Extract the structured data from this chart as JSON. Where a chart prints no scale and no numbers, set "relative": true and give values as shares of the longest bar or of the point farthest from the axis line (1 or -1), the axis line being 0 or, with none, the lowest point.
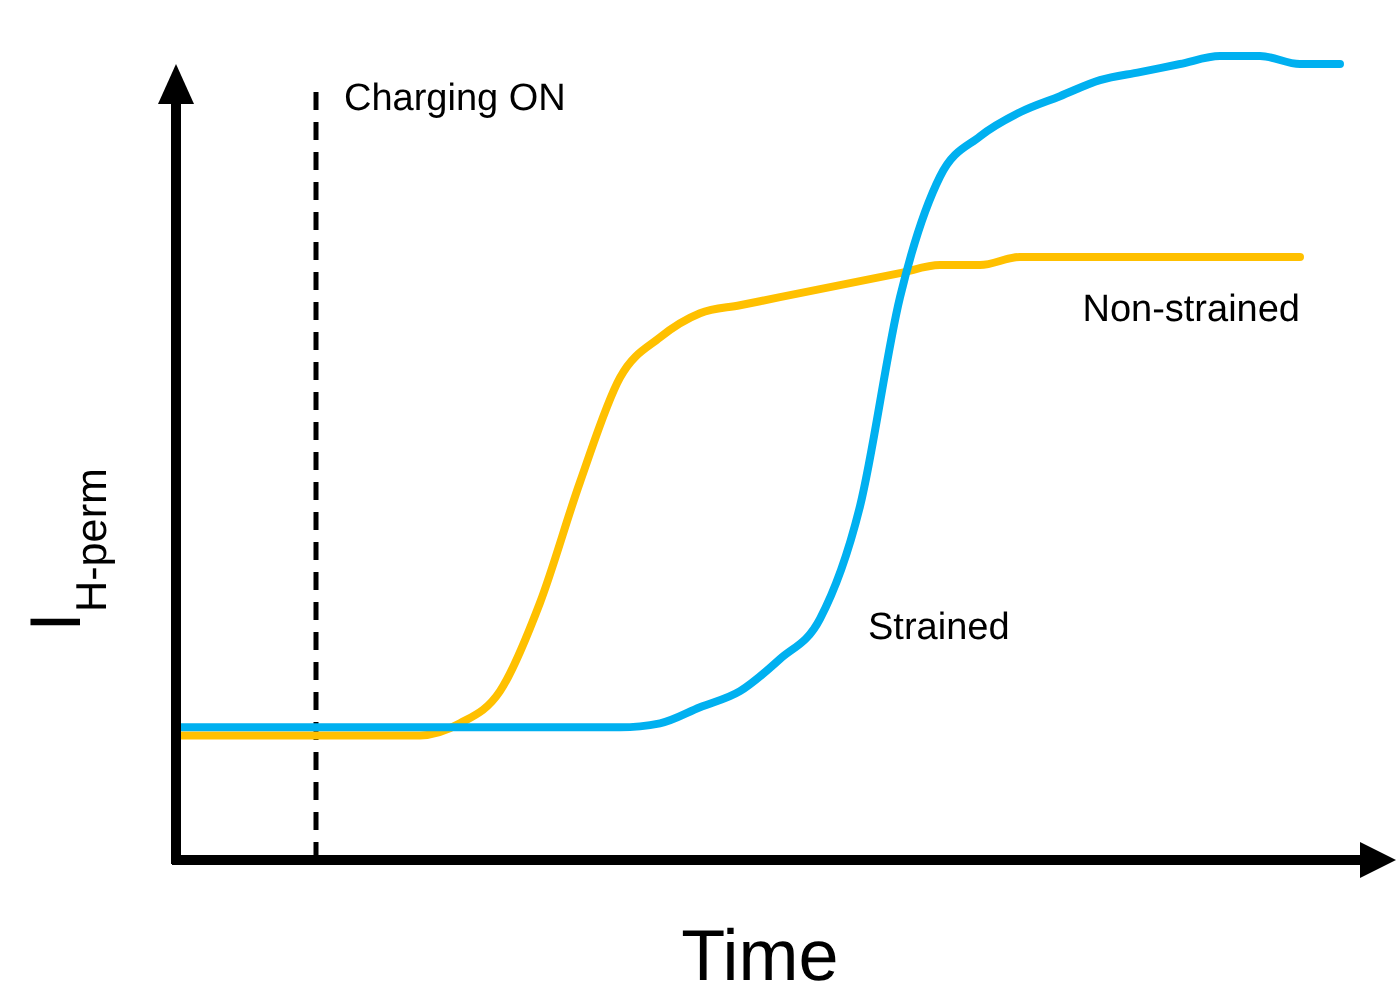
{
  "chart_data": {
    "type": "line",
    "relative": true,
    "xlabel": "Time",
    "ylabel": "I$_{H-perm}$",
    "line_style": "solid",
    "marker": "none",
    "legend": false,
    "grid": false,
    "categories": [
      null,
      null,
      null,
      null,
      null,
      null,
      null,
      null,
      null,
      null,
      null,
      null,
      null,
      null,
      null,
      null,
      null,
      null,
      null,
      null,
      null,
      null,
      null,
      null,
      null,
      null,
      null,
      null,
      null,
      null
    ],
    "series": [
      {
        "name": "Non-strained",
        "color": "#ffc000",
        "values": [
          0.155,
          0.155,
          0.155,
          0.155,
          0.155,
          0.155,
          0.155,
          0.17,
          0.21,
          0.32,
          0.47,
          0.6,
          0.65,
          0.68,
          0.69,
          0.7,
          0.71,
          0.72,
          0.73,
          0.74,
          0.74,
          0.75,
          0.75,
          0.75,
          0.75,
          0.75,
          0.75,
          0.75,
          0.75,
          null
        ]
      },
      {
        "name": "Strained",
        "color": "#00b0f0",
        "values": [
          0.165,
          0.165,
          0.165,
          0.165,
          0.165,
          0.165,
          0.165,
          0.165,
          0.165,
          0.165,
          0.165,
          0.165,
          0.17,
          0.19,
          0.21,
          0.25,
          0.3,
          0.44,
          0.7,
          0.85,
          0.9,
          0.93,
          0.95,
          0.97,
          0.98,
          0.99,
          1.0,
          1.0,
          0.99,
          0.99
        ]
      }
    ],
    "annotations": [
      "Charging ON"
    ]
  }
}
